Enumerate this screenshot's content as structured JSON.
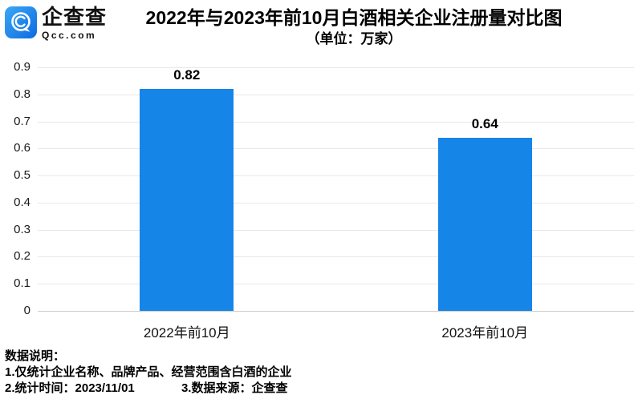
{
  "header": {
    "logo": {
      "name": "企查查",
      "domain": "Qcc.com",
      "icon": "qcc-q-bubble-icon",
      "gradient_top": "#3aa8f6",
      "gradient_bottom": "#0e6be0"
    },
    "title": "2022年与2023年前10月白酒相关企业注册量对比图",
    "subtitle": "（单位：万家）"
  },
  "chart_data": {
    "type": "bar",
    "title": "2022年与2023年前10月白酒相关企业注册量对比图",
    "unit_label": "（单位：万家）",
    "categories": [
      "2022年前10月",
      "2023年前10月"
    ],
    "values": [
      0.82,
      0.64
    ],
    "value_labels": [
      "0.82",
      "0.64"
    ],
    "ylim": [
      0,
      0.9
    ],
    "yticks": [
      "0.9",
      "0.8",
      "0.7",
      "0.6",
      "0.5",
      "0.4",
      "0.3",
      "0.2",
      "0.1",
      "0"
    ],
    "grid": true,
    "legend": false,
    "bar_color": "#1585e8",
    "gridline_color": "#e8e8e8",
    "axis_line_color": "#cccccc"
  },
  "footer": {
    "heading": "数据说明：",
    "note1": "1.仅统计企业名称、品牌产品、经营范围含白酒的企业",
    "note2": "2.统计时间：2023/11/01",
    "note3": "3.数据来源：企查查"
  }
}
